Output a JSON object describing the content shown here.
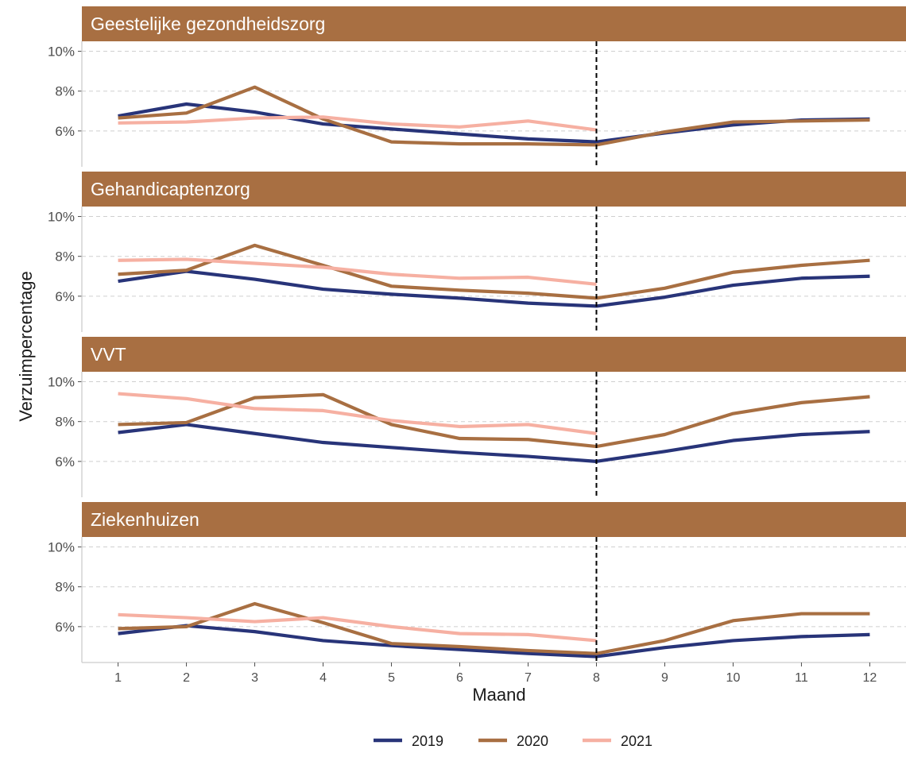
{
  "chart_data": {
    "type": "line",
    "xlabel": "Maand",
    "ylabel": "Verzuimpercentage",
    "x": [
      1,
      2,
      3,
      4,
      5,
      6,
      7,
      8,
      9,
      10,
      11,
      12
    ],
    "x_tick_labels": [
      "1",
      "2",
      "3",
      "4",
      "5",
      "6",
      "7",
      "8",
      "9",
      "10",
      "11",
      "12"
    ],
    "ylim": [
      4.2,
      10.5
    ],
    "y_ticks": [
      6,
      8,
      10
    ],
    "y_tick_labels": [
      "6%",
      "8%",
      "10%"
    ],
    "grid": "horizontal dashed",
    "reference_line": {
      "x": 8,
      "style": "dashed"
    },
    "legend": {
      "placement": "bottom",
      "entries": [
        {
          "label": "2019",
          "color": "#283479"
        },
        {
          "label": "2020",
          "color": "#a86f42"
        },
        {
          "label": "2021",
          "color": "#f6b0a2"
        }
      ]
    },
    "panels": [
      {
        "title": "Geestelijke gezondheidszorg",
        "series": [
          {
            "name": "2019",
            "values": [
              6.75,
              7.35,
              6.95,
              6.35,
              6.1,
              5.85,
              5.6,
              5.45,
              5.9,
              6.3,
              6.55,
              6.6
            ]
          },
          {
            "name": "2020",
            "values": [
              6.65,
              6.9,
              8.2,
              6.6,
              5.45,
              5.35,
              5.35,
              5.3,
              5.95,
              6.45,
              6.5,
              6.55
            ]
          },
          {
            "name": "2021",
            "values": [
              6.4,
              6.45,
              6.65,
              6.7,
              6.35,
              6.2,
              6.5,
              6.05
            ]
          }
        ]
      },
      {
        "title": "Gehandicaptenzorg",
        "series": [
          {
            "name": "2019",
            "values": [
              6.75,
              7.25,
              6.85,
              6.35,
              6.1,
              5.9,
              5.65,
              5.5,
              5.95,
              6.55,
              6.9,
              7.0
            ]
          },
          {
            "name": "2020",
            "values": [
              7.1,
              7.3,
              8.55,
              7.55,
              6.5,
              6.3,
              6.15,
              5.9,
              6.4,
              7.2,
              7.55,
              7.8
            ]
          },
          {
            "name": "2021",
            "values": [
              7.8,
              7.85,
              7.65,
              7.45,
              7.1,
              6.9,
              6.95,
              6.6
            ]
          }
        ]
      },
      {
        "title": "VVT",
        "series": [
          {
            "name": "2019",
            "values": [
              7.45,
              7.85,
              7.4,
              6.95,
              6.7,
              6.45,
              6.25,
              6.0,
              6.5,
              7.05,
              7.35,
              7.5
            ]
          },
          {
            "name": "2020",
            "values": [
              7.85,
              7.95,
              9.2,
              9.35,
              7.85,
              7.15,
              7.1,
              6.75,
              7.35,
              8.4,
              8.95,
              9.25
            ]
          },
          {
            "name": "2021",
            "values": [
              9.4,
              9.15,
              8.65,
              8.55,
              8.05,
              7.75,
              7.85,
              7.4
            ]
          }
        ]
      },
      {
        "title": "Ziekenhuizen",
        "series": [
          {
            "name": "2019",
            "values": [
              5.65,
              6.05,
              5.75,
              5.3,
              5.05,
              4.85,
              4.65,
              4.5,
              4.95,
              5.3,
              5.5,
              5.6
            ]
          },
          {
            "name": "2020",
            "values": [
              5.9,
              6.0,
              7.15,
              6.2,
              5.15,
              5.0,
              4.8,
              4.65,
              5.3,
              6.3,
              6.65,
              6.65
            ]
          },
          {
            "name": "2021",
            "values": [
              6.6,
              6.45,
              6.25,
              6.45,
              6.0,
              5.65,
              5.6,
              5.3
            ]
          }
        ]
      }
    ]
  }
}
